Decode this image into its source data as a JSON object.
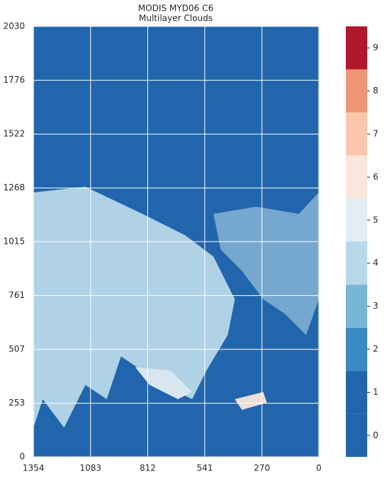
{
  "chart_data": {
    "type": "heatmap",
    "title": "MODIS MYD06 C6",
    "subtitle": "Multilayer Clouds",
    "xlim": [
      1354,
      0
    ],
    "xticks": [
      1354,
      1083,
      812,
      541,
      270,
      0
    ],
    "ylim": [
      0,
      2030
    ],
    "yticks": [
      0,
      253,
      507,
      761,
      1015,
      1268,
      1522,
      1776,
      2030
    ],
    "grid": true,
    "colorbar": {
      "lim": [
        -0.5,
        9.5
      ],
      "ticks": [
        0,
        1,
        2,
        3,
        4,
        5,
        6,
        7,
        8,
        9
      ],
      "colors": [
        "#2166ac",
        "#2166ac",
        "#3a89c1",
        "#78b4d6",
        "#b8d8ea",
        "#e3edf4",
        "#fbe6db",
        "#fac6ac",
        "#ef9676",
        "#b2182b"
      ]
    }
  }
}
